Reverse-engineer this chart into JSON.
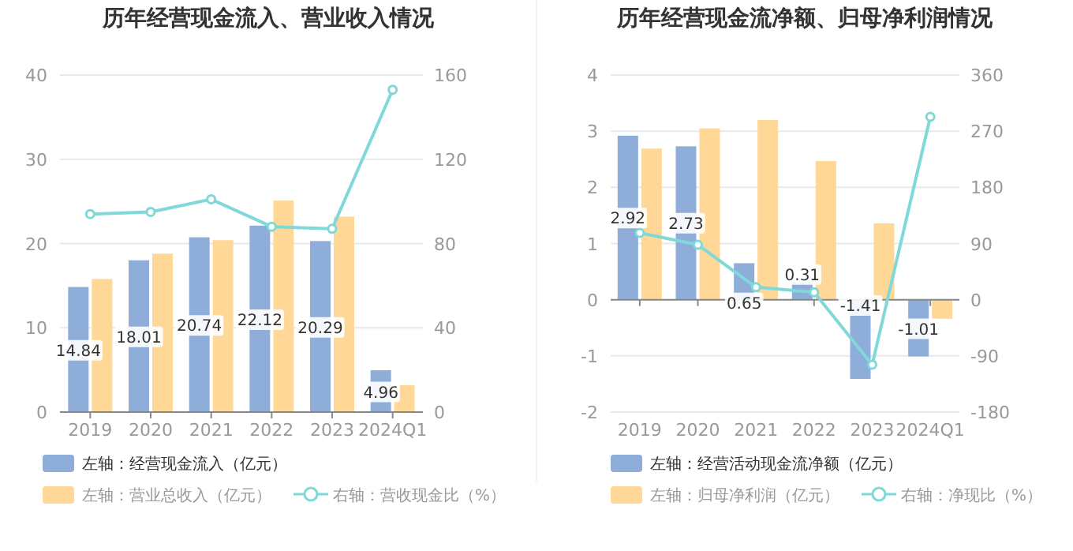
{
  "chart_data": [
    {
      "type": "bar",
      "title": "历年经营现金流入、营业收入情况",
      "categories": [
        "2019",
        "2020",
        "2021",
        "2022",
        "2023",
        "2024Q1"
      ],
      "ylim": [
        0,
        40
      ],
      "yticks": [
        0,
        10,
        20,
        30,
        40
      ],
      "y2lim": [
        0,
        160
      ],
      "y2ticks": [
        0,
        40,
        80,
        120,
        160
      ],
      "grid": "y",
      "legend": "bottom",
      "series": [
        {
          "name": "左轴：经营现金流入（亿元）",
          "type": "bar",
          "color": "#8eadd9",
          "values": [
            14.84,
            18.01,
            20.74,
            22.12,
            20.29,
            4.96
          ],
          "value_labels": [
            "14.84",
            "18.01",
            "20.74",
            "22.12",
            "20.29",
            "4.96"
          ]
        },
        {
          "name": "左轴：营业总收入（亿元）",
          "type": "bar",
          "color": "#ffd898",
          "values": [
            15.8,
            18.8,
            20.4,
            25.1,
            23.2,
            3.2
          ]
        },
        {
          "name": "右轴：营收现金比（%）",
          "type": "line",
          "axis": "y2",
          "color": "#80d8d8",
          "marker": "circle",
          "values": [
            94,
            95,
            101,
            88,
            87,
            153
          ]
        }
      ]
    },
    {
      "type": "bar",
      "title": "历年经营现金流净额、归母净利润情况",
      "categories": [
        "2019",
        "2020",
        "2021",
        "2022",
        "2023",
        "2024Q1"
      ],
      "ylim": [
        -2,
        4
      ],
      "yticks": [
        -2,
        -1,
        0,
        1,
        2,
        3,
        4
      ],
      "y2lim": [
        -180,
        360
      ],
      "y2ticks": [
        -180,
        -90,
        0,
        90,
        180,
        270,
        360
      ],
      "grid": "y",
      "legend": "bottom",
      "series": [
        {
          "name": "左轴：经营活动现金流净额（亿元）",
          "type": "bar",
          "color": "#8eadd9",
          "values": [
            2.92,
            2.73,
            0.65,
            0.31,
            -1.41,
            -1.01
          ],
          "value_labels": [
            "2.92",
            "2.73",
            "0.65",
            "0.31",
            "-1.41",
            "-1.01"
          ]
        },
        {
          "name": "左轴：归母净利润（亿元）",
          "type": "bar",
          "color": "#ffd898",
          "values": [
            2.69,
            3.05,
            3.2,
            2.47,
            1.36,
            -0.34
          ]
        },
        {
          "name": "右轴：净现比（%）",
          "type": "line",
          "axis": "y2",
          "color": "#80d8d8",
          "marker": "circle",
          "values": [
            107,
            88,
            20,
            12,
            -104,
            293
          ]
        }
      ]
    }
  ]
}
